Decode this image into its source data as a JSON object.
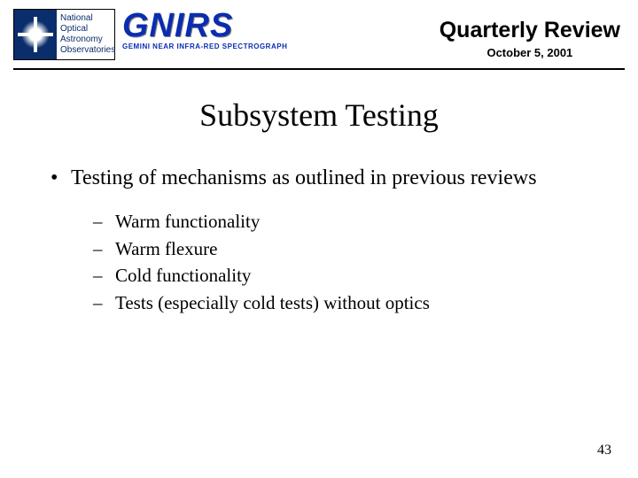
{
  "header": {
    "noao_text_line1": "National",
    "noao_text_line2": "Optical",
    "noao_text_line3": "Astronomy",
    "noao_text_line4": "Observatories",
    "gnirs_title": "GNIRS",
    "gnirs_sub": "GEMINI NEAR INFRA-RED SPECTROGRAPH",
    "review_title": "Quarterly Review",
    "review_date": "October 5, 2001"
  },
  "slide": {
    "title": "Subsystem Testing",
    "bullet": "Testing of mechanisms as outlined in previous reviews",
    "subitems": [
      "Warm functionality",
      "Warm flexure",
      "Cold functionality",
      "Tests (especially cold tests) without optics"
    ]
  },
  "page_number": "43",
  "colors": {
    "noao_blue": "#0a2d6b",
    "gnirs_blue": "#0a2db0",
    "text": "#000000",
    "background": "#ffffff"
  },
  "fonts": {
    "body": "Times New Roman",
    "header": "Arial",
    "title_size_pt": 36,
    "body_size_pt": 24,
    "sub_size_pt": 21
  }
}
